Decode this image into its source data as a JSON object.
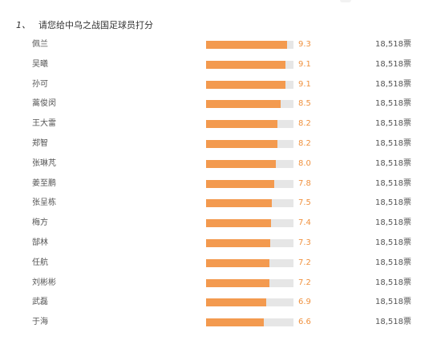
{
  "question": {
    "number": "1、",
    "title": "请您给中乌之战国足球员打分"
  },
  "max_score": 10,
  "colors": {
    "bar_fill": "#f39a4f",
    "bar_track": "#e6e6e6",
    "score_text": "#f0913e"
  },
  "players": [
    {
      "name": "佩兰",
      "score": "9.3",
      "votes": "18,518票"
    },
    {
      "name": "吴曦",
      "score": "9.1",
      "votes": "18,518票"
    },
    {
      "name": "孙可",
      "score": "9.1",
      "votes": "18,518票"
    },
    {
      "name": "蒿俊闵",
      "score": "8.5",
      "votes": "18,518票"
    },
    {
      "name": "王大雷",
      "score": "8.2",
      "votes": "18,518票"
    },
    {
      "name": "郑智",
      "score": "8.2",
      "votes": "18,518票"
    },
    {
      "name": "张琳芃",
      "score": "8.0",
      "votes": "18,518票"
    },
    {
      "name": "姜至鹏",
      "score": "7.8",
      "votes": "18,518票"
    },
    {
      "name": "张呈栋",
      "score": "7.5",
      "votes": "18,518票"
    },
    {
      "name": "梅方",
      "score": "7.4",
      "votes": "18,518票"
    },
    {
      "name": "郜林",
      "score": "7.3",
      "votes": "18,518票"
    },
    {
      "name": "任航",
      "score": "7.2",
      "votes": "18,518票"
    },
    {
      "name": "刘彬彬",
      "score": "7.2",
      "votes": "18,518票"
    },
    {
      "name": "武磊",
      "score": "6.9",
      "votes": "18,518票"
    },
    {
      "name": "于海",
      "score": "6.6",
      "votes": "18,518票"
    }
  ]
}
